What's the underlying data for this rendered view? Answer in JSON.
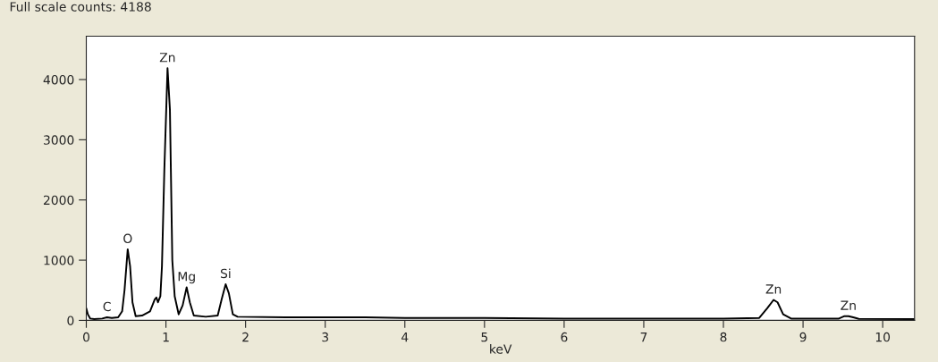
{
  "chart_data": {
    "type": "line",
    "title": "Full scale counts: 4188",
    "xlabel": "keV",
    "series": [
      {
        "color": "#000000",
        "x": [
          0,
          0.02,
          0.05,
          0.1,
          0.2,
          0.26,
          0.32,
          0.4,
          0.45,
          0.48,
          0.52,
          0.55,
          0.58,
          0.62,
          0.7,
          0.8,
          0.86,
          0.88,
          0.9,
          0.93,
          0.95,
          0.98,
          1.02,
          1.05,
          1.08,
          1.11,
          1.16,
          1.21,
          1.26,
          1.3,
          1.35,
          1.5,
          1.65,
          1.7,
          1.75,
          1.79,
          1.84,
          1.9,
          2.5,
          3.5,
          4.0,
          5,
          6,
          7,
          8,
          8.45,
          8.55,
          8.63,
          8.68,
          8.75,
          8.85,
          9.45,
          9.52,
          9.57,
          9.63,
          9.7,
          10.4
        ],
        "values": [
          200,
          100,
          30,
          20,
          30,
          50,
          40,
          50,
          150,
          500,
          1180,
          900,
          300,
          70,
          80,
          150,
          350,
          380,
          300,
          400,
          900,
          2500,
          4188,
          3500,
          1000,
          400,
          100,
          250,
          550,
          300,
          80,
          60,
          80,
          350,
          600,
          450,
          100,
          60,
          50,
          50,
          40,
          40,
          30,
          30,
          30,
          40,
          200,
          340,
          300,
          100,
          30,
          30,
          70,
          70,
          50,
          25,
          20
        ]
      }
    ],
    "annotations": [
      {
        "text": "C",
        "x": 0.26,
        "y": 50
      },
      {
        "text": "O",
        "x": 0.52,
        "y": 1180
      },
      {
        "text": "Zn",
        "x": 1.02,
        "y": 4188
      },
      {
        "text": "Mg",
        "x": 1.26,
        "y": 550
      },
      {
        "text": "Si",
        "x": 1.75,
        "y": 600
      },
      {
        "text": "Zn",
        "x": 8.63,
        "y": 340
      },
      {
        "text": "Zn",
        "x": 9.57,
        "y": 70
      }
    ],
    "xlim": [
      0,
      10.4
    ],
    "ylim": [
      0,
      4720
    ],
    "xticks": [
      0,
      1,
      2,
      3,
      4,
      5,
      6,
      7,
      8,
      9,
      10
    ],
    "yticks": [
      0,
      1000,
      2000,
      3000,
      4000
    ],
    "grid": false,
    "legend": false
  }
}
